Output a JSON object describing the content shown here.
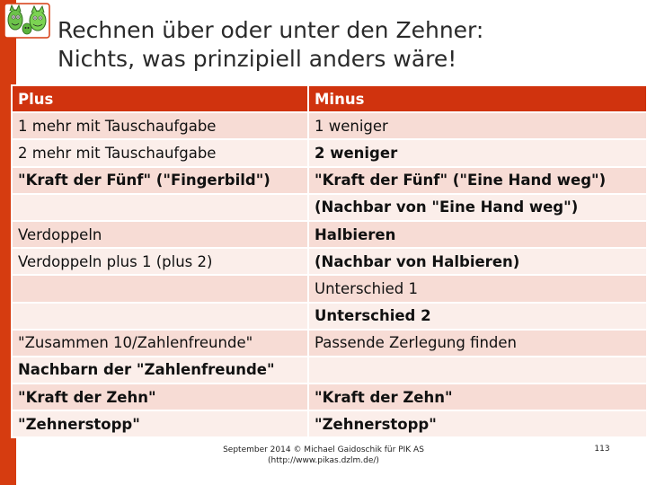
{
  "slide": {
    "title_line1": "Rechnen über oder unter den Zehner:",
    "title_line2": "Nichts, was prinzipiell anders wäre!",
    "accent_color": "#d63c10",
    "logo_icon": "green-cartoon-figures-logo"
  },
  "table": {
    "headers": [
      "Plus",
      "Minus"
    ],
    "rows": [
      {
        "plus": "1 mehr mit Tauschaufgabe",
        "minus": "1 weniger"
      },
      {
        "plus": "2 mehr mit Tauschaufgabe",
        "minus": "2 weniger"
      },
      {
        "plus": "\"Kraft der Fünf\" (\"Fingerbild\")",
        "minus": "\"Kraft der Fünf\" (\"Eine Hand weg\")"
      },
      {
        "plus": "",
        "minus": "(Nachbar von \"Eine Hand weg\")"
      },
      {
        "plus": "Verdoppeln",
        "minus": "Halbieren"
      },
      {
        "plus": "Verdoppeln plus 1 (plus 2)",
        "minus": "(Nachbar von Halbieren)"
      },
      {
        "plus": "",
        "minus": "Unterschied 1"
      },
      {
        "plus": "",
        "minus": "Unterschied 2"
      },
      {
        "plus": "\"Zusammen 10/Zahlenfreunde\"",
        "minus": "Passende Zerlegung finden"
      },
      {
        "plus": "Nachbarn der \"Zahlenfreunde\"",
        "minus": ""
      },
      {
        "plus": "\"Kraft der Zehn\"",
        "minus": "\"Kraft der Zehn\""
      },
      {
        "plus": "\"Zehnerstopp\"",
        "minus": "\"Zehnerstopp\""
      }
    ]
  },
  "footer": {
    "line1": "September 2014 © Michael Gaidoschik für PIK AS",
    "line2": "(http://www.pikas.dzlm.de/)",
    "page_number": "113"
  }
}
